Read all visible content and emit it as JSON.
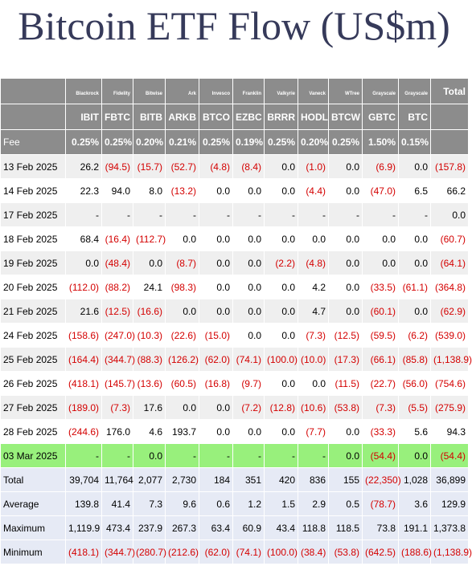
{
  "title": "Bitcoin ETF Flow (US$m)",
  "issuers": [
    "Blackrock",
    "Fidelity",
    "Bitwise",
    "Ark",
    "Invesco",
    "Franklin",
    "Valkyrie",
    "Vaneck",
    "WTree",
    "Grayscale",
    "Grayscale"
  ],
  "tickers": [
    "IBIT",
    "FBTC",
    "BITB",
    "ARKB",
    "BTCO",
    "EZBC",
    "BRRR",
    "HODL",
    "BTCW",
    "GBTC",
    "BTC"
  ],
  "total_label": "Total",
  "fee_label": "Fee",
  "fees": [
    "0.25%",
    "0.25%",
    "0.20%",
    "0.21%",
    "0.25%",
    "0.19%",
    "0.25%",
    "0.20%",
    "0.25%",
    "1.50%",
    "0.15%"
  ],
  "rows": [
    {
      "date": "13 Feb 2025",
      "values": [
        "26.2",
        "(94.5)",
        "(15.7)",
        "(52.7)",
        "(4.8)",
        "(8.4)",
        "0.0",
        "(1.0)",
        "0.0",
        "(6.9)",
        "0.0"
      ],
      "total": "(157.8)"
    },
    {
      "date": "14 Feb 2025",
      "values": [
        "22.3",
        "94.0",
        "8.0",
        "(13.2)",
        "0.0",
        "0.0",
        "0.0",
        "(4.4)",
        "0.0",
        "(47.0)",
        "6.5"
      ],
      "total": "66.2"
    },
    {
      "date": "17 Feb 2025",
      "values": [
        "-",
        "-",
        "-",
        "-",
        "-",
        "-",
        "-",
        "-",
        "-",
        "-",
        "-"
      ],
      "total": "0.0"
    },
    {
      "date": "18 Feb 2025",
      "values": [
        "68.4",
        "(16.4)",
        "(112.7)",
        "0.0",
        "0.0",
        "0.0",
        "0.0",
        "0.0",
        "0.0",
        "0.0",
        "0.0"
      ],
      "total": "(60.7)"
    },
    {
      "date": "19 Feb 2025",
      "values": [
        "0.0",
        "(48.4)",
        "0.0",
        "(8.7)",
        "0.0",
        "0.0",
        "(2.2)",
        "(4.8)",
        "0.0",
        "0.0",
        "0.0"
      ],
      "total": "(64.1)"
    },
    {
      "date": "20 Feb 2025",
      "values": [
        "(112.0)",
        "(88.2)",
        "24.1",
        "(98.3)",
        "0.0",
        "0.0",
        "0.0",
        "4.2",
        "0.0",
        "(33.5)",
        "(61.1)"
      ],
      "total": "(364.8)"
    },
    {
      "date": "21 Feb 2025",
      "values": [
        "21.6",
        "(12.5)",
        "(16.6)",
        "0.0",
        "0.0",
        "0.0",
        "0.0",
        "4.7",
        "0.0",
        "(60.1)",
        "0.0"
      ],
      "total": "(62.9)"
    },
    {
      "date": "24 Feb 2025",
      "values": [
        "(158.6)",
        "(247.0)",
        "(10.3)",
        "(22.6)",
        "(15.0)",
        "0.0",
        "0.0",
        "(7.3)",
        "(12.5)",
        "(59.5)",
        "(6.2)"
      ],
      "total": "(539.0)"
    },
    {
      "date": "25 Feb 2025",
      "values": [
        "(164.4)",
        "(344.7)",
        "(88.3)",
        "(126.2)",
        "(62.0)",
        "(74.1)",
        "(100.0)",
        "(10.0)",
        "(17.3)",
        "(66.1)",
        "(85.8)"
      ],
      "total": "(1,138.9)"
    },
    {
      "date": "26 Feb 2025",
      "values": [
        "(418.1)",
        "(145.7)",
        "(13.6)",
        "(60.5)",
        "(16.8)",
        "(9.7)",
        "0.0",
        "0.0",
        "(11.5)",
        "(22.7)",
        "(56.0)"
      ],
      "total": "(754.6)"
    },
    {
      "date": "27 Feb 2025",
      "values": [
        "(189.0)",
        "(7.3)",
        "17.6",
        "0.0",
        "0.0",
        "(7.2)",
        "(12.8)",
        "(10.6)",
        "(53.8)",
        "(7.3)",
        "(5.5)"
      ],
      "total": "(275.9)"
    },
    {
      "date": "28 Feb 2025",
      "values": [
        "(244.6)",
        "176.0",
        "4.6",
        "193.7",
        "0.0",
        "0.0",
        "0.0",
        "(7.7)",
        "0.0",
        "(33.3)",
        "5.6"
      ],
      "total": "94.3"
    },
    {
      "date": "03 Mar 2025",
      "values": [
        "-",
        "-",
        "0.0",
        "-",
        "-",
        "-",
        "-",
        "-",
        "0.0",
        "(54.4)",
        "0.0"
      ],
      "total": "(54.4)",
      "highlight": true
    }
  ],
  "stats": [
    {
      "label": "Total",
      "values": [
        "39,704",
        "11,764",
        "2,077",
        "2,730",
        "184",
        "351",
        "420",
        "836",
        "155",
        "(22,350)",
        "1,028"
      ],
      "total": "36,899"
    },
    {
      "label": "Average",
      "values": [
        "139.8",
        "41.4",
        "7.3",
        "9.6",
        "0.6",
        "1.2",
        "1.5",
        "2.9",
        "0.5",
        "(78.7)",
        "3.6"
      ],
      "total": "129.9"
    },
    {
      "label": "Maximum",
      "values": [
        "1,119.9",
        "473.4",
        "237.9",
        "267.3",
        "63.4",
        "60.9",
        "43.4",
        "118.8",
        "118.5",
        "73.8",
        "191.1"
      ],
      "total": "1,373.8"
    },
    {
      "label": "Minimum",
      "values": [
        "(418.1)",
        "(344.7)",
        "(280.7)",
        "(212.6)",
        "(62.0)",
        "(74.1)",
        "(100.0)",
        "(38.4)",
        "(53.8)",
        "(642.5)",
        "(188.6)"
      ],
      "total": "(1,138.9)"
    }
  ],
  "colors": {
    "header": "#8c8c8c",
    "negative": "#d40000",
    "highlight": "#98f07c",
    "stats": "#e6eaf5",
    "title": "#363a5a"
  }
}
